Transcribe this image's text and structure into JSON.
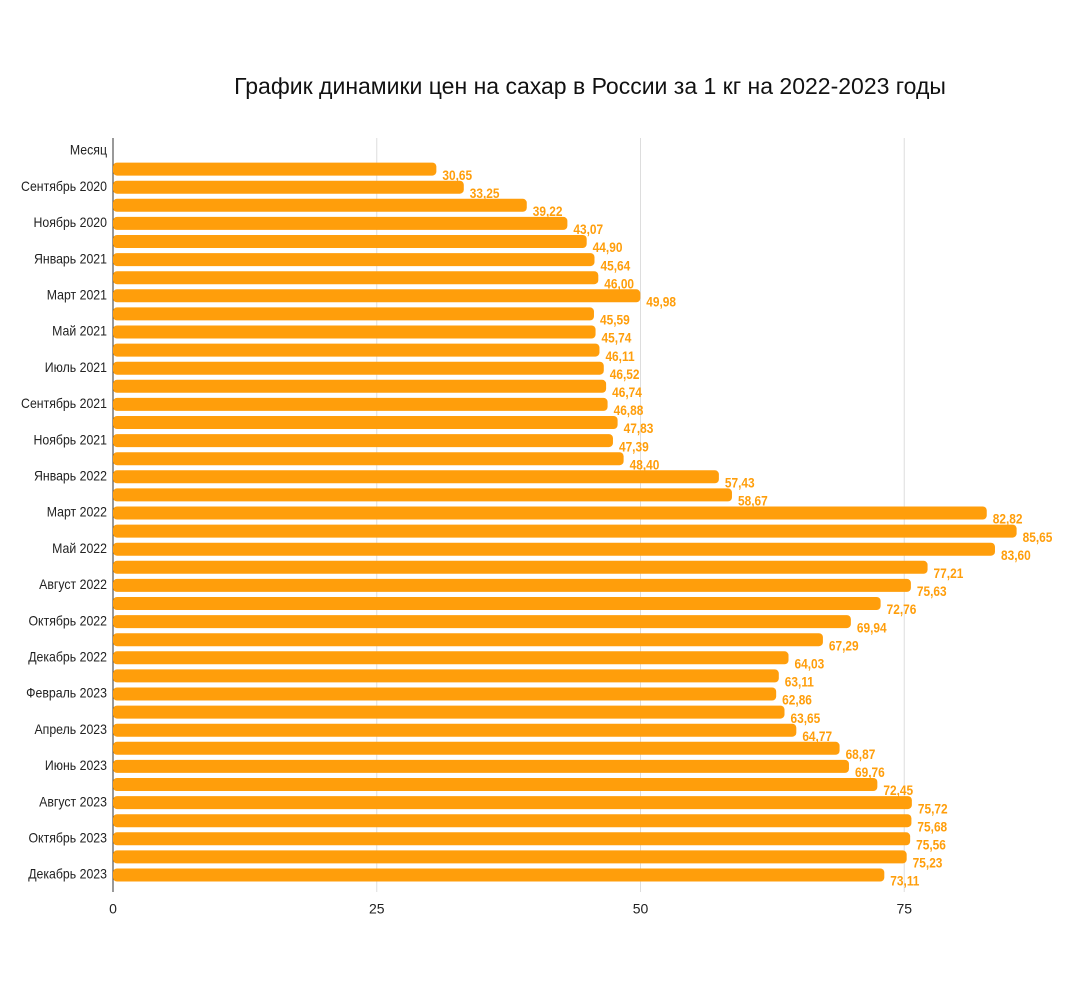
{
  "chart_data": {
    "type": "hbar",
    "title": "График динамики цен на сахар в России за 1 кг на 2022-2023 годы",
    "categories": [
      "Месяц",
      null,
      "Сентябрь 2020",
      null,
      "Ноябрь 2020",
      null,
      "Январь 2021",
      null,
      "Март 2021",
      null,
      "Май 2021",
      null,
      "Июль 2021",
      null,
      "Сентябрь 2021",
      null,
      "Ноябрь 2021",
      null,
      "Январь 2022",
      null,
      "Март 2022",
      null,
      "Май 2022",
      null,
      "Август 2022",
      null,
      "Октябрь 2022",
      null,
      "Декабрь 2022",
      null,
      "Февраль 2023",
      null,
      "Апрель 2023",
      null,
      "Июнь 2023",
      null,
      "Август 2023",
      null,
      "Октябрь 2023",
      null,
      "Декабрь 2023"
    ],
    "values": [
      null,
      30.65,
      33.25,
      39.22,
      43.07,
      44.9,
      45.64,
      46.0,
      49.98,
      45.59,
      45.74,
      46.11,
      46.52,
      46.74,
      46.88,
      47.83,
      47.39,
      48.4,
      57.43,
      58.67,
      82.82,
      85.65,
      83.6,
      77.21,
      75.63,
      72.76,
      69.94,
      67.29,
      64.03,
      63.11,
      62.86,
      63.65,
      64.77,
      68.87,
      69.76,
      72.45,
      75.72,
      75.68,
      75.56,
      75.23,
      73.11
    ],
    "value_labels": [
      null,
      "30,65",
      "33,25",
      "39,22",
      "43,07",
      "44,90",
      "45,64",
      "46,00",
      "49,98",
      "45,59",
      "45,74",
      "46,11",
      "46,52",
      "46,74",
      "46,88",
      "47,83",
      "47,39",
      "48,40",
      "57,43",
      "58,67",
      "82,82",
      "85,65",
      "83,60",
      "77,21",
      "75,63",
      "72,76",
      "69,94",
      "67,29",
      "64,03",
      "63,11",
      "62,86",
      "63,65",
      "64,77",
      "68,87",
      "69,76",
      "72,45",
      "75,72",
      "75,68",
      "75,56",
      "75,23",
      "73,11"
    ],
    "color": "#ff9e0b",
    "xlim": [
      0,
      88
    ],
    "xticks": [
      0,
      25,
      50,
      75
    ],
    "grid": true
  }
}
